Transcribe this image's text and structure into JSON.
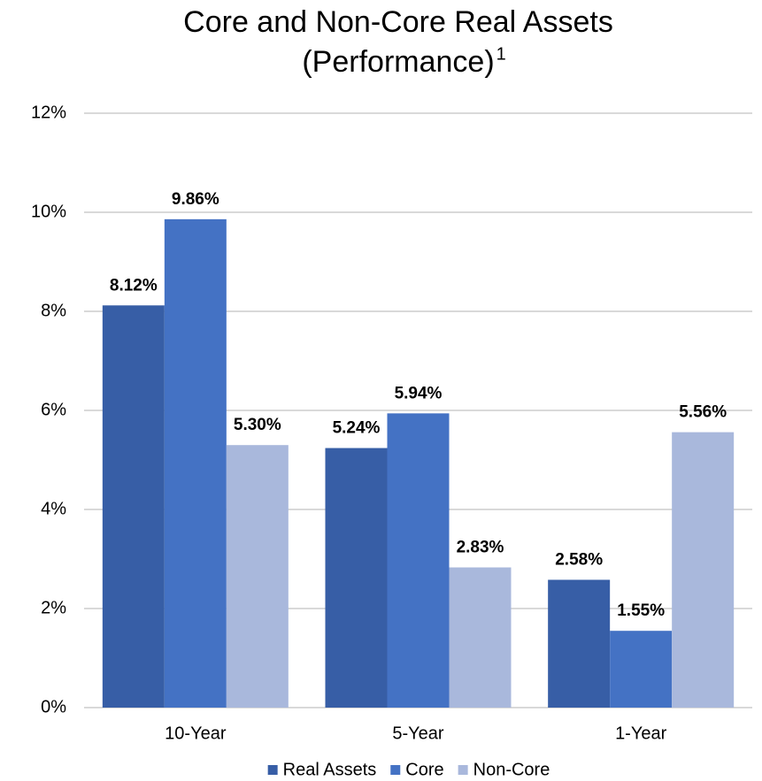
{
  "chart_data": {
    "type": "bar",
    "title": "Core and Non-Core Real Assets",
    "subtitle": "(Performance)",
    "footnote_marker": "1",
    "categories": [
      "10-Year",
      "5-Year",
      "1-Year"
    ],
    "series": [
      {
        "name": "Real Assets",
        "color": "#375ea6",
        "values": [
          8.12,
          5.24,
          2.58
        ],
        "value_labels": [
          "8.12%",
          "5.24%",
          "2.58%"
        ]
      },
      {
        "name": "Core",
        "color": "#4472c4",
        "values": [
          9.86,
          5.94,
          1.55
        ],
        "value_labels": [
          "9.86%",
          "5.94%",
          "1.55%"
        ]
      },
      {
        "name": "Non-Core",
        "color": "#a9b8dc",
        "values": [
          5.3,
          2.83,
          5.56
        ],
        "value_labels": [
          "5.30%",
          "2.83%",
          "5.56%"
        ]
      }
    ],
    "ylim": [
      0,
      12
    ],
    "yticks": [
      {
        "value": 0,
        "label": "0%"
      },
      {
        "value": 2,
        "label": "2%"
      },
      {
        "value": 4,
        "label": "4%"
      },
      {
        "value": 6,
        "label": "6%"
      },
      {
        "value": 8,
        "label": "8%"
      },
      {
        "value": 10,
        "label": "10%"
      },
      {
        "value": 12,
        "label": "12%"
      }
    ],
    "grid": true,
    "legend": "bottom"
  }
}
